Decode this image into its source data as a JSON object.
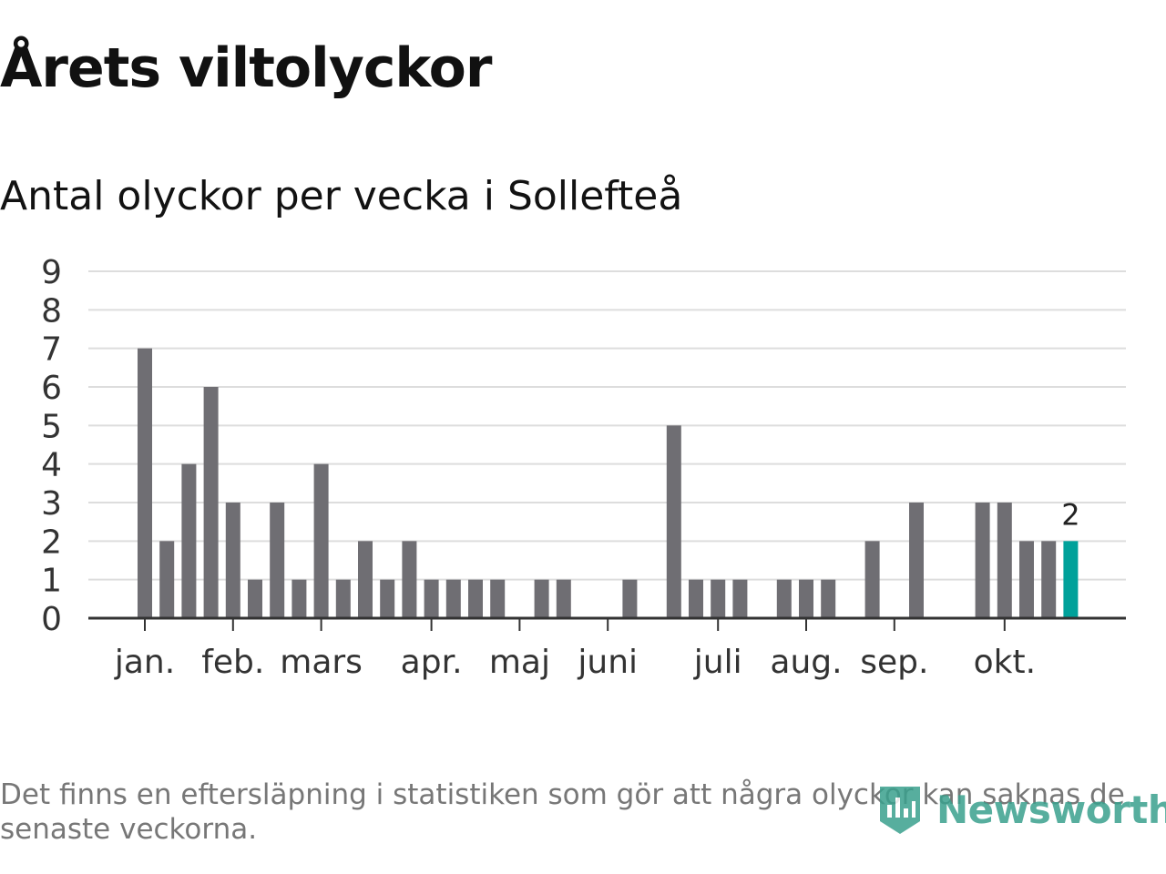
{
  "chart_data": {
    "type": "bar",
    "title": "Årets viltolyckor",
    "subtitle": "Antal olyckor per vecka i Sollefteå",
    "xlabel": "",
    "ylabel": "",
    "ylim": [
      0,
      9
    ],
    "yticks": [
      0,
      1,
      2,
      3,
      4,
      5,
      6,
      7,
      8,
      9
    ],
    "week_start": 1,
    "values": [
      7,
      2,
      4,
      6,
      3,
      1,
      3,
      1,
      4,
      1,
      2,
      1,
      2,
      1,
      1,
      1,
      1,
      0,
      1,
      1,
      0,
      0,
      1,
      0,
      5,
      1,
      1,
      1,
      0,
      1,
      1,
      1,
      0,
      2,
      0,
      3,
      0,
      0,
      3,
      3,
      2,
      2,
      2
    ],
    "highlight_index": 42,
    "highlight_label": "2",
    "month_labels": [
      {
        "label": "jan.",
        "week": 1
      },
      {
        "label": "feb.",
        "week": 5
      },
      {
        "label": "mars",
        "week": 9
      },
      {
        "label": "apr.",
        "week": 14
      },
      {
        "label": "maj",
        "week": 18
      },
      {
        "label": "juni",
        "week": 22
      },
      {
        "label": "juli",
        "week": 27
      },
      {
        "label": "aug.",
        "week": 31
      },
      {
        "label": "sep.",
        "week": 35
      },
      {
        "label": "okt.",
        "week": 40
      }
    ],
    "grid": true
  },
  "colors": {
    "bar": "#6f6e73",
    "highlight": "#00a19a",
    "grid": "#dddddd",
    "axis": "#333333"
  },
  "footnote": "Det finns en eftersläpning i statistiken som gör att några olyckor kan saknas de senaste veckorna.",
  "logo": {
    "text": "Newsworthy",
    "icon": "newsworthy-logo-icon"
  }
}
